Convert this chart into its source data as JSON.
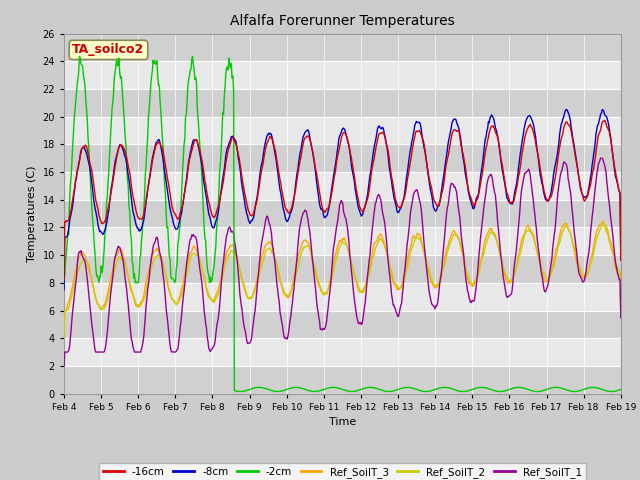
{
  "title": "Alfalfa Forerunner Temperatures",
  "xlabel": "Time",
  "ylabel": "Temperatures (C)",
  "annotation": "TA_soilco2",
  "annotation_color": "#cc0000",
  "annotation_bg": "#ffffcc",
  "ylim": [
    0,
    26
  ],
  "yticks": [
    0,
    2,
    4,
    6,
    8,
    10,
    12,
    14,
    16,
    18,
    20,
    22,
    24,
    26
  ],
  "xtick_labels": [
    "Feb 4",
    "Feb 5",
    "Feb 6",
    "Feb 7",
    "Feb 8",
    "Feb 9",
    "Feb 10",
    "Feb 11",
    "Feb 12",
    "Feb 13",
    "Feb 14",
    "Feb 15",
    "Feb 16",
    "Feb 17",
    "Feb 18",
    "Feb 19"
  ],
  "colors": {
    "red16": "#dd0000",
    "blue8": "#0000cc",
    "green2": "#00cc00",
    "orange3": "#ffa500",
    "yellow2": "#cccc00",
    "purple1": "#990099"
  },
  "legend_labels": [
    "-16cm",
    "-8cm",
    "-2cm",
    "Ref_SoilT_3",
    "Ref_SoilT_2",
    "Ref_SoilT_1"
  ],
  "legend_colors": [
    "#dd0000",
    "#0000cc",
    "#00cc00",
    "#ffa500",
    "#cccc00",
    "#990099"
  ],
  "fig_bg": "#cccccc",
  "plot_bg": "#e8e8e8",
  "band_colors": [
    "#d8d8d8",
    "#e8e8e8"
  ]
}
